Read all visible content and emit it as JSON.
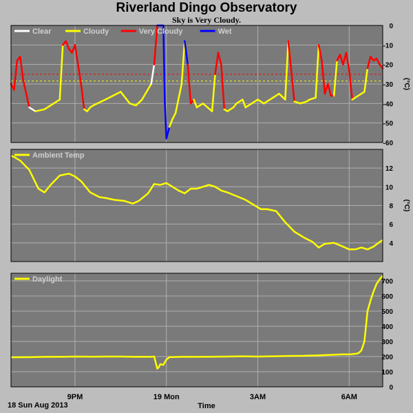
{
  "header": {
    "title": "Riverland Dingo Observatory",
    "subtitle": "Sky is Very Cloudy."
  },
  "footer": {
    "date": "18 Sun Aug 2013",
    "time_label": "Time"
  },
  "x_axis": {
    "range": [
      18.9,
      31.1
    ],
    "ticks": [
      {
        "label": "9PM",
        "value": 21
      },
      {
        "label": "19 Mon",
        "value": 24
      },
      {
        "label": "3AM",
        "value": 27
      },
      {
        "label": "6AM",
        "value": 30
      }
    ]
  },
  "colors": {
    "background": "#bdbdbd",
    "plot_background": "#7a7a7a",
    "grid": "#b0b0b0",
    "clear": "#ffffff",
    "cloudy": "#ffff00",
    "very_cloudy": "#ff0000",
    "wet": "#0000ff",
    "temp": "#ffff00",
    "daylight": "#ffff00"
  },
  "chart_data": [
    {
      "type": "line",
      "name": "sky",
      "legend": [
        {
          "label": "Clear",
          "color": "#ffffff"
        },
        {
          "label": "Cloudy",
          "color": "#ffff00"
        },
        {
          "label": "Very Cloudy",
          "color": "#ff0000"
        },
        {
          "label": "Wet",
          "color": "#0000ff"
        }
      ],
      "ylim": [
        -60,
        0
      ],
      "yticks": [
        0,
        -10,
        -20,
        -30,
        -40,
        -50,
        -60
      ],
      "ylabel": "(°C)",
      "thresholds": [
        {
          "value": -25,
          "color": "#ff0000"
        },
        {
          "value": -28.5,
          "color": "#ffff00"
        }
      ],
      "x": [
        18.9,
        19.0,
        19.1,
        19.2,
        19.3,
        19.5,
        19.7,
        20.0,
        20.3,
        20.5,
        20.6,
        20.7,
        20.8,
        20.9,
        21.0,
        21.2,
        21.3,
        21.4,
        21.5,
        21.6,
        22.0,
        22.5,
        22.8,
        23.0,
        23.2,
        23.5,
        23.6,
        23.7,
        23.8,
        23.9,
        23.95,
        24.0,
        24.1,
        24.2,
        24.3,
        24.5,
        24.6,
        24.7,
        24.8,
        24.9,
        25.0,
        25.2,
        25.5,
        25.6,
        25.7,
        25.8,
        25.9,
        26.0,
        26.2,
        26.3,
        26.5,
        26.6,
        26.8,
        26.9,
        27.0,
        27.2,
        27.5,
        27.7,
        27.9,
        28.0,
        28.2,
        28.4,
        28.6,
        28.7,
        28.9,
        29.0,
        29.1,
        29.2,
        29.3,
        29.4,
        29.5,
        29.6,
        29.7,
        29.8,
        29.9,
        30.0,
        30.1,
        30.3,
        30.5,
        30.6,
        30.7,
        30.8,
        30.9,
        31.0,
        31.1
      ],
      "y": [
        -30,
        -33,
        -18,
        -16,
        -28,
        -42,
        -44,
        -43,
        -40,
        -38,
        -10,
        -8,
        -12,
        -14,
        -10,
        -30,
        -43,
        -44,
        -42,
        -41,
        -38,
        -34,
        -40,
        -41,
        -38,
        -30,
        -20,
        0,
        0,
        0,
        -40,
        -58,
        -52,
        -48,
        -45,
        -30,
        -8,
        -20,
        -40,
        -38,
        -42,
        -40,
        -44,
        -25,
        -14,
        -20,
        -43,
        -44,
        -42,
        -40,
        -38,
        -42,
        -40,
        -39,
        -38,
        -40,
        -37,
        -35,
        -38,
        -8,
        -39,
        -40,
        -39,
        -38,
        -37,
        -10,
        -18,
        -35,
        -30,
        -36,
        -36,
        -18,
        -15,
        -20,
        -14,
        -23,
        -38,
        -36,
        -34,
        -22,
        -16,
        -18,
        -17,
        -20,
        -22
      ],
      "status": [
        "vc",
        "vc",
        "vc",
        "vc",
        "vc",
        "cl",
        "c",
        "c",
        "c",
        "c",
        "vc",
        "vc",
        "vc",
        "vc",
        "vc",
        "vc",
        "c",
        "c",
        "c",
        "c",
        "c",
        "c",
        "c",
        "c",
        "c",
        "cl",
        "vc",
        "w",
        "w",
        "w",
        "w",
        "w",
        "c",
        "c",
        "c",
        "c",
        "w",
        "vc",
        "vc",
        "c",
        "c",
        "c",
        "c",
        "vc",
        "vc",
        "vc",
        "c",
        "c",
        "c",
        "c",
        "c",
        "c",
        "c",
        "c",
        "c",
        "c",
        "c",
        "c",
        "c",
        "vc",
        "c",
        "c",
        "c",
        "c",
        "c",
        "vc",
        "vc",
        "vc",
        "vc",
        "vc",
        "c",
        "vc",
        "vc",
        "vc",
        "vc",
        "vc",
        "c",
        "c",
        "c",
        "vc",
        "vc",
        "vc",
        "vc",
        "vc",
        "vc"
      ]
    },
    {
      "type": "line",
      "name": "temperature",
      "legend": [
        {
          "label": "Ambient Temp",
          "color": "#ffff00"
        }
      ],
      "ylim": [
        2,
        14
      ],
      "yticks": [
        12,
        10,
        8,
        6,
        4
      ],
      "ylabel": "(°C)",
      "x": [
        18.9,
        19.0,
        19.2,
        19.5,
        19.8,
        20.0,
        20.2,
        20.5,
        20.8,
        21.0,
        21.2,
        21.5,
        21.8,
        22.0,
        22.3,
        22.6,
        22.9,
        23.1,
        23.4,
        23.6,
        23.8,
        24.0,
        24.2,
        24.4,
        24.6,
        24.8,
        25.0,
        25.2,
        25.4,
        25.6,
        25.8,
        26.0,
        26.3,
        26.6,
        26.9,
        27.1,
        27.3,
        27.6,
        27.9,
        28.2,
        28.5,
        28.8,
        29.0,
        29.2,
        29.5,
        29.8,
        30.0,
        30.2,
        30.4,
        30.6,
        30.8,
        31.0,
        31.1
      ],
      "y": [
        13.3,
        13.2,
        12.8,
        11.8,
        9.8,
        9.4,
        10.2,
        11.2,
        11.4,
        11.1,
        10.6,
        9.4,
        8.9,
        8.8,
        8.6,
        8.5,
        8.2,
        8.5,
        9.3,
        10.3,
        10.2,
        10.4,
        10.0,
        9.6,
        9.3,
        9.8,
        9.8,
        10.0,
        10.2,
        10.0,
        9.6,
        9.4,
        9.0,
        8.6,
        8.0,
        7.6,
        7.6,
        7.4,
        6.2,
        5.2,
        4.6,
        4.1,
        3.5,
        3.9,
        4.0,
        3.6,
        3.3,
        3.3,
        3.5,
        3.3,
        3.6,
        4.1,
        4.3
      ]
    },
    {
      "type": "line",
      "name": "daylight",
      "legend": [
        {
          "label": "Daylight",
          "color": "#ffff00"
        }
      ],
      "ylim": [
        0,
        750
      ],
      "yticks": [
        700,
        600,
        500,
        400,
        300,
        200,
        100,
        0
      ],
      "x": [
        18.9,
        19.5,
        20.0,
        20.5,
        21.0,
        21.5,
        22.0,
        22.5,
        23.0,
        23.3,
        23.5,
        23.6,
        23.7,
        23.75,
        23.8,
        23.9,
        24.0,
        24.1,
        24.5,
        25.0,
        25.5,
        26.0,
        26.5,
        27.0,
        27.5,
        28.0,
        28.5,
        29.0,
        29.5,
        29.8,
        30.0,
        30.2,
        30.3,
        30.4,
        30.5,
        30.55,
        30.6,
        30.7,
        30.8,
        30.9,
        31.0,
        31.1
      ],
      "y": [
        195,
        196,
        198,
        198,
        200,
        199,
        200,
        200,
        198,
        199,
        198,
        200,
        120,
        130,
        150,
        145,
        180,
        196,
        198,
        198,
        199,
        200,
        202,
        200,
        202,
        204,
        205,
        208,
        212,
        215,
        214,
        218,
        222,
        240,
        300,
        400,
        500,
        570,
        630,
        680,
        710,
        735
      ]
    }
  ]
}
